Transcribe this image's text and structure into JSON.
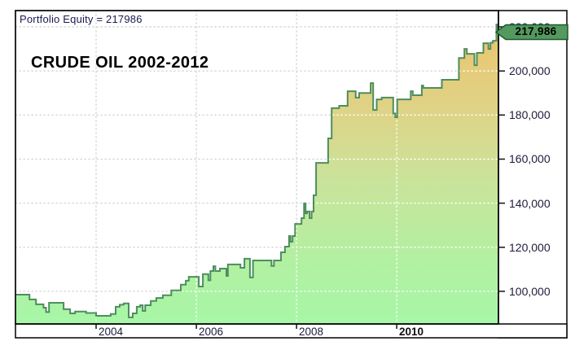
{
  "header": {
    "portfolio_label": "Portfolio Equity = 217986"
  },
  "chart_data": {
    "type": "area",
    "title": "CRUDE OIL 2002-2012",
    "subtitle": "",
    "legend": [],
    "grid": "dotted",
    "x_range": [
      2002.39,
      2012.03
    ],
    "y_range": [
      85200,
      227400
    ],
    "x_ticks": [
      2004,
      2006,
      2008,
      2010
    ],
    "x_tick_labels": [
      "2004",
      "2006",
      "2008",
      "2010"
    ],
    "y_ticks": [
      220000,
      200000,
      180000,
      160000,
      140000,
      120000,
      100000
    ],
    "y_tick_labels": [
      "220,000",
      "200,000",
      "180,000",
      "160,000",
      "140,000",
      "120,000",
      "100,000"
    ],
    "final_value": 217986,
    "final_value_label": "217,986",
    "series": [
      {
        "name": "Portfolio Equity",
        "step": "after",
        "points": [
          [
            2002.4,
            98500
          ],
          [
            2002.67,
            96300
          ],
          [
            2002.8,
            94100
          ],
          [
            2002.95,
            92600
          ],
          [
            2003.0,
            90600
          ],
          [
            2003.06,
            94800
          ],
          [
            2003.35,
            91900
          ],
          [
            2003.48,
            90000
          ],
          [
            2003.58,
            90800
          ],
          [
            2003.8,
            90200
          ],
          [
            2004.0,
            88900
          ],
          [
            2004.29,
            89700
          ],
          [
            2004.39,
            93000
          ],
          [
            2004.47,
            93900
          ],
          [
            2004.55,
            94500
          ],
          [
            2004.65,
            88200
          ],
          [
            2004.73,
            90000
          ],
          [
            2004.81,
            93000
          ],
          [
            2004.88,
            93700
          ],
          [
            2004.93,
            91100
          ],
          [
            2004.98,
            93700
          ],
          [
            2005.09,
            95600
          ],
          [
            2005.2,
            97000
          ],
          [
            2005.33,
            98200
          ],
          [
            2005.5,
            100400
          ],
          [
            2005.69,
            103000
          ],
          [
            2005.79,
            104800
          ],
          [
            2005.85,
            106600
          ],
          [
            2006.05,
            102200
          ],
          [
            2006.13,
            107800
          ],
          [
            2006.24,
            105000
          ],
          [
            2006.28,
            109200
          ],
          [
            2006.34,
            111400
          ],
          [
            2006.38,
            109200
          ],
          [
            2006.47,
            110300
          ],
          [
            2006.6,
            107000
          ],
          [
            2006.63,
            112200
          ],
          [
            2006.88,
            110700
          ],
          [
            2006.96,
            114800
          ],
          [
            2007.07,
            106300
          ],
          [
            2007.13,
            114000
          ],
          [
            2007.5,
            111500
          ],
          [
            2007.55,
            114000
          ],
          [
            2007.69,
            117700
          ],
          [
            2007.77,
            120300
          ],
          [
            2007.85,
            125100
          ],
          [
            2007.88,
            122500
          ],
          [
            2007.92,
            125100
          ],
          [
            2007.97,
            130600
          ],
          [
            2008.1,
            133200
          ],
          [
            2008.15,
            139900
          ],
          [
            2008.18,
            135400
          ],
          [
            2008.21,
            136200
          ],
          [
            2008.26,
            133200
          ],
          [
            2008.3,
            136200
          ],
          [
            2008.34,
            143600
          ],
          [
            2008.39,
            158300
          ],
          [
            2008.63,
            169400
          ],
          [
            2008.7,
            183100
          ],
          [
            2008.85,
            184200
          ],
          [
            2009.02,
            190800
          ],
          [
            2009.18,
            187900
          ],
          [
            2009.25,
            190000
          ],
          [
            2009.48,
            194500
          ],
          [
            2009.53,
            182300
          ],
          [
            2009.6,
            187100
          ],
          [
            2009.7,
            187900
          ],
          [
            2009.93,
            180700
          ],
          [
            2009.97,
            179000
          ],
          [
            2010.01,
            187100
          ],
          [
            2010.28,
            190800
          ],
          [
            2010.32,
            189000
          ],
          [
            2010.5,
            193400
          ],
          [
            2010.53,
            192300
          ],
          [
            2010.9,
            196000
          ],
          [
            2011.24,
            205900
          ],
          [
            2011.35,
            210000
          ],
          [
            2011.4,
            207800
          ],
          [
            2011.55,
            202600
          ],
          [
            2011.6,
            208200
          ],
          [
            2011.73,
            212600
          ],
          [
            2011.83,
            210000
          ],
          [
            2011.87,
            212800
          ],
          [
            2011.92,
            213700
          ],
          [
            2011.99,
            221100
          ],
          [
            2012.02,
            217986
          ]
        ]
      }
    ],
    "colors": {
      "line": "#4e8e5e",
      "fill_top": "#eec168",
      "fill_mid1": "#e0d285",
      "fill_mid2": "#c9e49b",
      "fill_mid3": "#b2f0a2",
      "fill_bottom": "#a7f6a7",
      "grid_on_white": "#d4d4d4",
      "grid_on_fill": "#ffffff",
      "tag_bg": "#54995e",
      "tag_border": "#1d5930",
      "border": "#111111",
      "axis_text": "#1d1d3c"
    }
  }
}
